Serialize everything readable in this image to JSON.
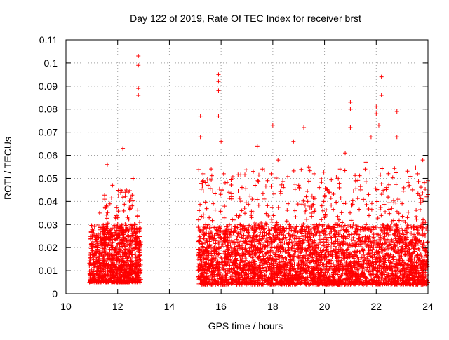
{
  "chart_data": {
    "type": "scatter",
    "title": "Day 122 of 2019, Rate Of TEC Index for receiver brst",
    "xlabel": "GPS time / hours",
    "ylabel": "ROTI / TECUs",
    "xlim": [
      10,
      24
    ],
    "ylim": [
      0,
      0.11
    ],
    "x_ticks": [
      "10",
      "12",
      "14",
      "16",
      "18",
      "20",
      "22",
      "24"
    ],
    "y_ticks": [
      "0",
      "0.01",
      "0.02",
      "0.03",
      "0.04",
      "0.05",
      "0.06",
      "0.07",
      "0.08",
      "0.09",
      "0.1",
      "0.11"
    ],
    "grid": true,
    "marker": "plus",
    "series": [
      {
        "color": "#ff0000",
        "points": [
          [
            11.0,
            0.027
          ],
          [
            11.1,
            0.012
          ],
          [
            11.2,
            0.022
          ],
          [
            11.3,
            0.035
          ],
          [
            11.4,
            0.018
          ],
          [
            11.5,
            0.041
          ],
          [
            11.6,
            0.056
          ],
          [
            11.7,
            0.024
          ],
          [
            11.8,
            0.047
          ],
          [
            11.9,
            0.015
          ],
          [
            12.0,
            0.033
          ],
          [
            12.1,
            0.029
          ],
          [
            12.2,
            0.063
          ],
          [
            12.3,
            0.044
          ],
          [
            12.4,
            0.021
          ],
          [
            12.5,
            0.037
          ],
          [
            12.6,
            0.05
          ],
          [
            12.7,
            0.026
          ],
          [
            12.8,
            0.103
          ],
          [
            12.8,
            0.099
          ],
          [
            12.8,
            0.089
          ],
          [
            12.8,
            0.086
          ],
          [
            12.85,
            0.031
          ],
          [
            12.85,
            0.011
          ],
          [
            15.2,
            0.077
          ],
          [
            15.2,
            0.068
          ],
          [
            15.3,
            0.052
          ],
          [
            15.5,
            0.047
          ],
          [
            15.7,
            0.039
          ],
          [
            15.9,
            0.095
          ],
          [
            15.9,
            0.092
          ],
          [
            15.9,
            0.088
          ],
          [
            15.9,
            0.077
          ],
          [
            16.0,
            0.066
          ],
          [
            16.1,
            0.052
          ],
          [
            16.3,
            0.044
          ],
          [
            16.5,
            0.032
          ],
          [
            16.8,
            0.036
          ],
          [
            17.0,
            0.028
          ],
          [
            17.2,
            0.041
          ],
          [
            17.4,
            0.064
          ],
          [
            17.6,
            0.054
          ],
          [
            17.8,
            0.049
          ],
          [
            18.0,
            0.073
          ],
          [
            18.2,
            0.058
          ],
          [
            18.4,
            0.046
          ],
          [
            18.6,
            0.039
          ],
          [
            18.8,
            0.066
          ],
          [
            19.0,
            0.047
          ],
          [
            19.2,
            0.072
          ],
          [
            19.4,
            0.038
          ],
          [
            19.6,
            0.052
          ],
          [
            19.8,
            0.046
          ],
          [
            20.0,
            0.033
          ],
          [
            20.2,
            0.044
          ],
          [
            20.4,
            0.03
          ],
          [
            20.6,
            0.054
          ],
          [
            20.8,
            0.061
          ],
          [
            21.0,
            0.083
          ],
          [
            21.0,
            0.08
          ],
          [
            21.0,
            0.072
          ],
          [
            21.2,
            0.049
          ],
          [
            21.4,
            0.045
          ],
          [
            21.6,
            0.057
          ],
          [
            21.8,
            0.068
          ],
          [
            22.0,
            0.081
          ],
          [
            22.0,
            0.078
          ],
          [
            22.1,
            0.073
          ],
          [
            22.2,
            0.094
          ],
          [
            22.2,
            0.086
          ],
          [
            22.4,
            0.046
          ],
          [
            22.6,
            0.037
          ],
          [
            22.8,
            0.079
          ],
          [
            22.8,
            0.068
          ],
          [
            23.0,
            0.039
          ],
          [
            23.2,
            0.033
          ],
          [
            23.4,
            0.045
          ],
          [
            23.6,
            0.052
          ],
          [
            23.8,
            0.058
          ],
          [
            24.0,
            0.043
          ],
          [
            24.0,
            0.049
          ]
        ],
        "bands": [
          {
            "x": [
              10.9,
              12.9
            ],
            "y": [
              0.005,
              0.03
            ],
            "count": 950
          },
          {
            "x": [
              11.4,
              12.8
            ],
            "y": [
              0.012,
              0.045
            ],
            "count": 140
          },
          {
            "x": [
              15.1,
              24.0
            ],
            "y": [
              0.004,
              0.03
            ],
            "count": 3200
          },
          {
            "x": [
              15.1,
              24.0
            ],
            "y": [
              0.01,
              0.055
            ],
            "count": 650
          }
        ]
      }
    ]
  }
}
